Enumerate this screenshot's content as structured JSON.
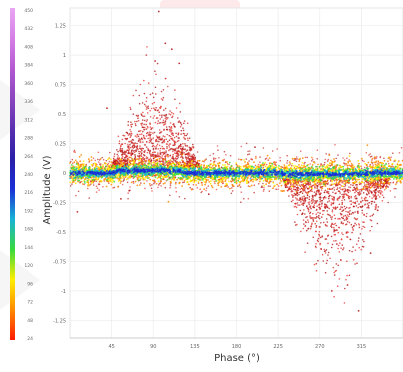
{
  "chart_data": {
    "type": "scatter",
    "title": "",
    "xlabel": "Phase (°)",
    "ylabel": "Amplitude (V)",
    "xlim": [
      0,
      360
    ],
    "ylim": [
      -1.4,
      1.4
    ],
    "x_ticks": [
      45,
      90,
      135,
      180,
      225,
      270,
      315
    ],
    "y_ticks": [
      1.25,
      1,
      0.75,
      0.5,
      0.25,
      0,
      -0.25,
      -0.5,
      -0.75,
      -1,
      -1.25
    ],
    "x_tick_labels": [
      "45",
      "90",
      "135",
      "180",
      "225",
      "270",
      "315"
    ],
    "y_tick_labels": [
      "1.25",
      "1",
      "0.75",
      "0.5",
      "0.25",
      "0",
      "-0.25",
      "-0.5",
      "-0.75",
      "-1",
      "-1.25"
    ],
    "grid": true,
    "colorbar": {
      "min": 0,
      "max": 450,
      "tick_labels": [
        "450",
        "432",
        "408",
        "384",
        "360",
        "336",
        "312",
        "288",
        "264",
        "240",
        "216",
        "192",
        "168",
        "144",
        "120",
        "96",
        "72",
        "48",
        "24"
      ],
      "colors": [
        "#ff1a00",
        "#ff8a00",
        "#ffee00",
        "#38d93d",
        "#19b3d6",
        "#1a2fd6",
        "#2a1fa8",
        "#5a2fb0",
        "#8a45bf",
        "#b35ad1",
        "#d57fe6",
        "#e8a6f2"
      ]
    },
    "clusters": [
      {
        "x_range": [
          0,
          360
        ],
        "y_center": 0,
        "y_spread": 0.07,
        "density": "very-high",
        "colors": [
          "#1a2fd6",
          "#19b3d6",
          "#38d93d",
          "#ffee00",
          "#ff8a00"
        ]
      },
      {
        "x_range": [
          40,
          140
        ],
        "y_center": 0.35,
        "y_spread": 0.3,
        "peak_x": 100,
        "peak_y": 1.1,
        "density": "medium",
        "colors": [
          "#b71c1c",
          "#e53935"
        ]
      },
      {
        "x_range": [
          230,
          345
        ],
        "y_center": -0.4,
        "y_spread": 0.35,
        "peak_x": 290,
        "peak_y": -1.0,
        "density": "medium",
        "colors": [
          "#b71c1c",
          "#e53935"
        ]
      }
    ]
  }
}
